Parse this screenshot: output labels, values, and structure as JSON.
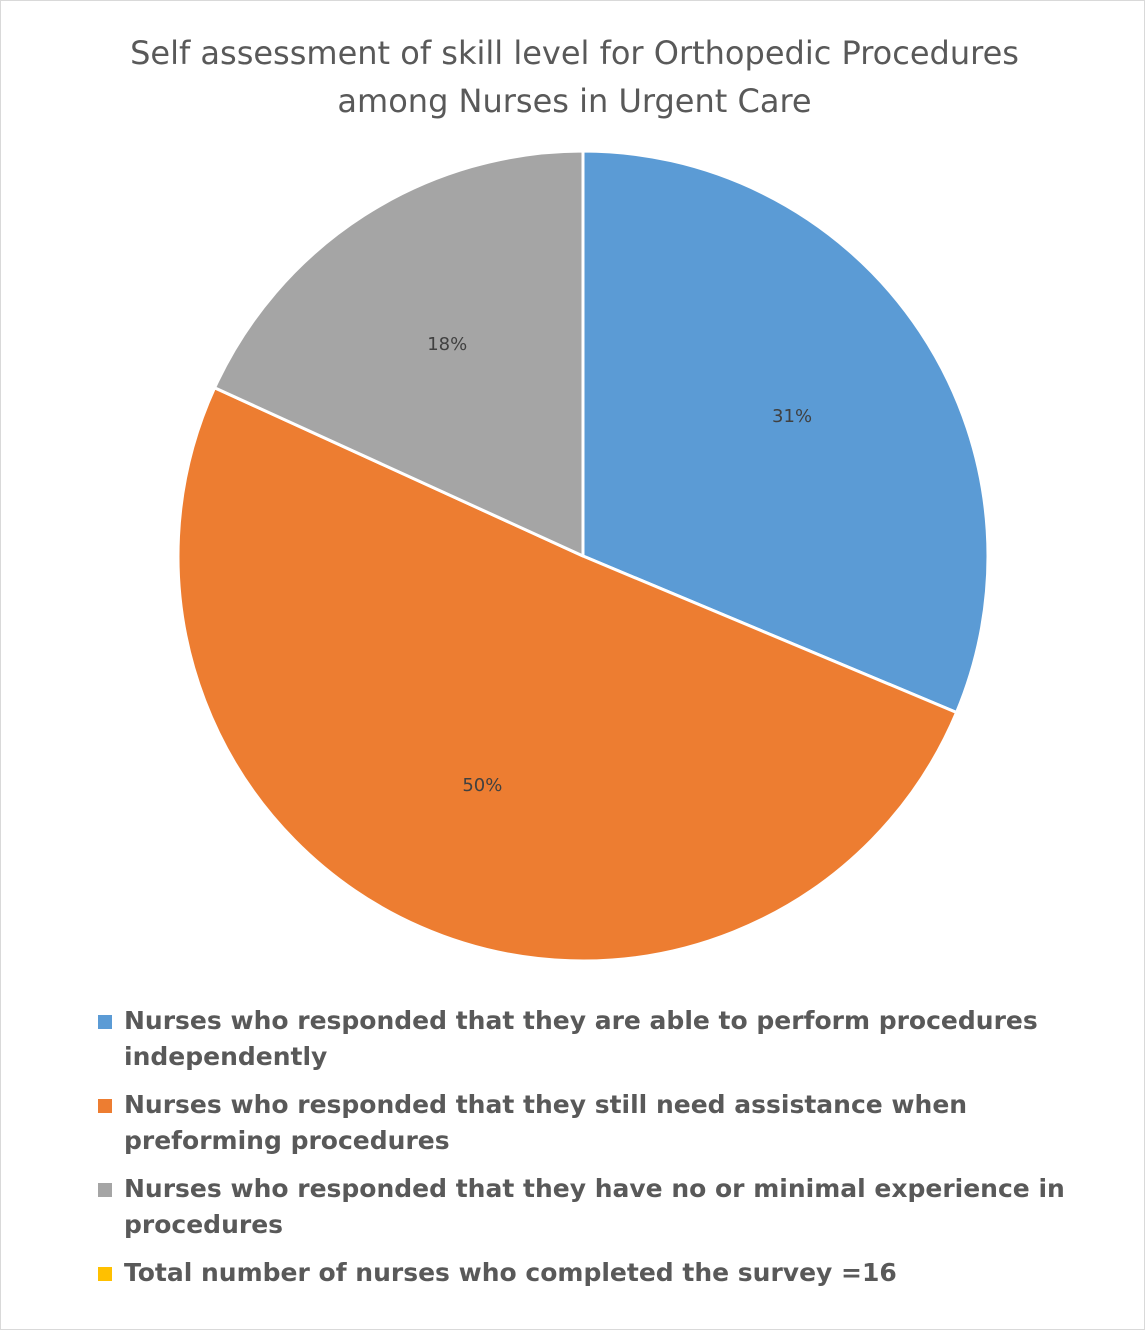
{
  "chart_data": {
    "type": "pie",
    "title_lines": [
      "Self assessment of skill level for Orthopedic Procedures",
      "among Nurses in Urgent Care"
    ],
    "slices": [
      {
        "label": "Nurses who responded that they are able to perform  procedures independently",
        "value": 31,
        "data_label": "31%",
        "color": "#5b9bd5"
      },
      {
        "label": "Nurses who responded that they still need assistance when preforming procedures",
        "value": 50,
        "data_label": "50%",
        "color": "#ed7d31"
      },
      {
        "label": "Nurses who responded that they have no or  minimal experience in procedures",
        "value": 18,
        "data_label": "18%",
        "color": "#a5a5a5"
      },
      {
        "label": "Total number of nurses who completed the survey =16",
        "value": 0,
        "data_label": "",
        "color": "#ffc000"
      }
    ],
    "legend_position": "bottom"
  }
}
